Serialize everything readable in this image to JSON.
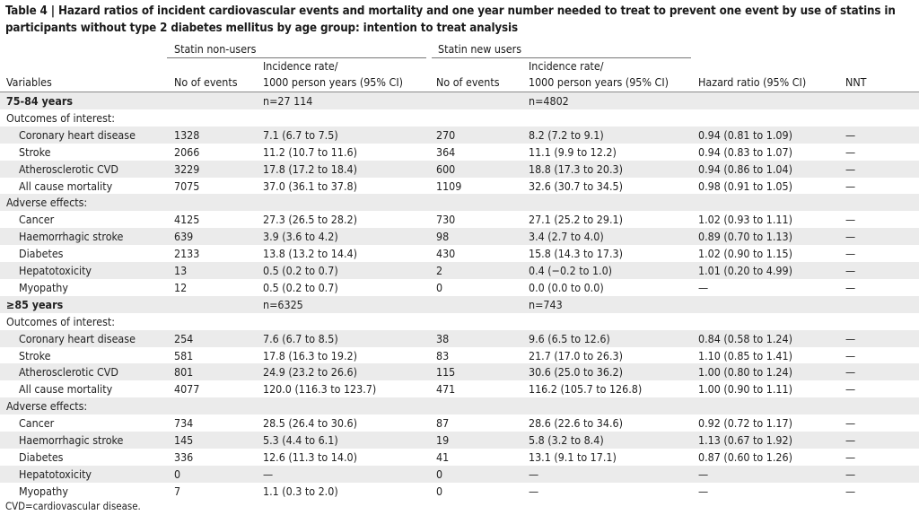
{
  "caption": {
    "label": "Table 4 |",
    "text": "Hazard ratios of incident cardiovascular events and mortality and one year number needed to treat to prevent one event by use of statins in participants without type 2 diabetes mellitus by age group: intention to treat analysis"
  },
  "groups": {
    "non_users": "Statin non-users",
    "new_users": "Statin new users"
  },
  "headers": {
    "variables": "Variables",
    "events_1": "No of events",
    "rate_1_l1": "Incidence rate/",
    "rate_1_l2": "1000 person years (95% CI)",
    "events_2": "No of events",
    "rate_2_l1": "Incidence rate/",
    "rate_2_l2": "1000 person years (95% CI)",
    "hr": "Hazard ratio (95% CI)",
    "nnt": "NNT"
  },
  "rows": [
    {
      "kind": "age",
      "label": "75-84 years",
      "n1": "n=27 114",
      "n2": "n=4802"
    },
    {
      "kind": "sub",
      "label": "Outcomes of interest:"
    },
    {
      "kind": "data",
      "label": "Coronary heart disease",
      "e1": "1328",
      "r1": "7.1 (6.7 to 7.5)",
      "e2": "270",
      "r2": "8.2 (7.2 to 9.1)",
      "hr": "0.94 (0.81 to 1.09)",
      "nnt": "—"
    },
    {
      "kind": "data",
      "label": "Stroke",
      "e1": "2066",
      "r1": "11.2 (10.7 to 11.6)",
      "e2": "364",
      "r2": "11.1 (9.9 to 12.2)",
      "hr": "0.94 (0.83 to 1.07)",
      "nnt": "—"
    },
    {
      "kind": "data",
      "label": "Atherosclerotic CVD",
      "e1": "3229",
      "r1": "17.8 (17.2 to 18.4)",
      "e2": "600",
      "r2": "18.8 (17.3 to 20.3)",
      "hr": "0.94 (0.86 to 1.04)",
      "nnt": "—"
    },
    {
      "kind": "data",
      "label": "All cause mortality",
      "e1": "7075",
      "r1": "37.0 (36.1 to 37.8)",
      "e2": "1109",
      "r2": "32.6 (30.7 to 34.5)",
      "hr": "0.98 (0.91 to 1.05)",
      "nnt": "—"
    },
    {
      "kind": "sub",
      "label": "Adverse effects:"
    },
    {
      "kind": "data",
      "label": "Cancer",
      "e1": "4125",
      "r1": "27.3 (26.5 to 28.2)",
      "e2": "730",
      "r2": "27.1 (25.2 to 29.1)",
      "hr": "1.02 (0.93 to 1.11)",
      "nnt": "—"
    },
    {
      "kind": "data",
      "label": "Haemorrhagic stroke",
      "e1": "639",
      "r1": "3.9 (3.6 to 4.2)",
      "e2": "98",
      "r2": "3.4 (2.7 to 4.0)",
      "hr": "0.89 (0.70 to 1.13)",
      "nnt": "—"
    },
    {
      "kind": "data",
      "label": "Diabetes",
      "e1": "2133",
      "r1": "13.8 (13.2 to 14.4)",
      "e2": "430",
      "r2": "15.8 (14.3 to 17.3)",
      "hr": "1.02 (0.90 to 1.15)",
      "nnt": "—"
    },
    {
      "kind": "data",
      "label": "Hepatotoxicity",
      "e1": "13",
      "r1": "0.5 (0.2 to 0.7)",
      "e2": "2",
      "r2": "0.4 (−0.2 to 1.0)",
      "hr": "1.01 (0.20 to 4.99)",
      "nnt": "—"
    },
    {
      "kind": "data",
      "label": "Myopathy",
      "e1": "12",
      "r1": "0.5 (0.2 to 0.7)",
      "e2": "0",
      "r2": "0.0 (0.0 to 0.0)",
      "hr": "—",
      "nnt": "—"
    },
    {
      "kind": "age",
      "label": "≥85 years",
      "n1": "n=6325",
      "n2": "n=743"
    },
    {
      "kind": "sub",
      "label": "Outcomes of interest:"
    },
    {
      "kind": "data",
      "label": "Coronary heart disease",
      "e1": "254",
      "r1": "7.6 (6.7 to 8.5)",
      "e2": "38",
      "r2": "9.6 (6.5 to 12.6)",
      "hr": "0.84 (0.58 to 1.24)",
      "nnt": "—"
    },
    {
      "kind": "data",
      "label": "Stroke",
      "e1": "581",
      "r1": "17.8 (16.3 to 19.2)",
      "e2": "83",
      "r2": "21.7 (17.0 to 26.3)",
      "hr": "1.10 (0.85 to 1.41)",
      "nnt": "—"
    },
    {
      "kind": "data",
      "label": "Atherosclerotic CVD",
      "e1": "801",
      "r1": "24.9 (23.2 to 26.6)",
      "e2": "115",
      "r2": "30.6 (25.0 to 36.2)",
      "hr": "1.00 (0.80 to 1.24)",
      "nnt": "—"
    },
    {
      "kind": "data",
      "label": "All cause mortality",
      "e1": "4077",
      "r1": "120.0 (116.3 to 123.7)",
      "e2": "471",
      "r2": "116.2 (105.7 to 126.8)",
      "hr": "1.00 (0.90 to 1.11)",
      "nnt": "—"
    },
    {
      "kind": "sub",
      "label": "Adverse effects:"
    },
    {
      "kind": "data",
      "label": "Cancer",
      "e1": "734",
      "r1": "28.5 (26.4 to 30.6)",
      "e2": "87",
      "r2": "28.6 (22.6 to 34.6)",
      "hr": "0.92 (0.72 to 1.17)",
      "nnt": "—"
    },
    {
      "kind": "data",
      "label": "Haemorrhagic stroke",
      "e1": "145",
      "r1": "5.3 (4.4 to 6.1)",
      "e2": "19",
      "r2": "5.8 (3.2 to 8.4)",
      "hr": "1.13 (0.67 to 1.92)",
      "nnt": "—"
    },
    {
      "kind": "data",
      "label": "Diabetes",
      "e1": "336",
      "r1": "12.6 (11.3 to 14.0)",
      "e2": "41",
      "r2": "13.1 (9.1 to 17.1)",
      "hr": "0.87 (0.60 to 1.26)",
      "nnt": "—"
    },
    {
      "kind": "data",
      "label": "Hepatotoxicity",
      "e1": "0",
      "r1": "—",
      "e2": "0",
      "r2": "—",
      "hr": "—",
      "nnt": "—"
    },
    {
      "kind": "data",
      "label": "Myopathy",
      "e1": "7",
      "r1": "1.1 (0.3 to 2.0)",
      "e2": "0",
      "r2": "—",
      "hr": "—",
      "nnt": "—"
    }
  ],
  "footnote": "CVD=cardiovascular disease.",
  "colors": {
    "shade": "#ebebeb",
    "text": "#222222",
    "rule": "#8a8a8a"
  }
}
